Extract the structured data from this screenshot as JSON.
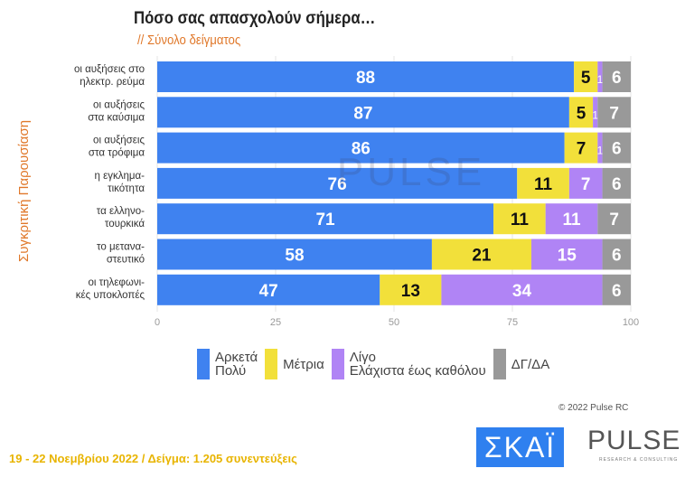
{
  "header": {
    "title": "Πόσο σας απασχολούν σήμερα…",
    "subtitle": "// Σύνολο δείγματος",
    "side_label": "Συγκριτική Παρουσίαση"
  },
  "chart_data": {
    "type": "bar",
    "orientation": "horizontal",
    "stacked": true,
    "categories": [
      "οι αυξήσεις στο|ηλεκτρ. ρεύμα",
      "οι αυξήσεις|στα καύσιμα",
      "οι αυξήσεις|στα τρόφιμα",
      "η εγκλημα-|τικότητα",
      "τα ελληνο-|τουρκικά",
      "το μεταναστευτικό",
      "οι τηλεφωνι-|κές υποκλοπές"
    ],
    "series": [
      {
        "name": "Αρκετά Πολύ",
        "color": "#3f82f0",
        "label_color": "#ffffff",
        "values": [
          88,
          87,
          86,
          76,
          71,
          58,
          47
        ]
      },
      {
        "name": "Μέτρια",
        "color": "#f2e03a",
        "label_color": "#111111",
        "values": [
          5,
          5,
          7,
          11,
          11,
          21,
          13
        ]
      },
      {
        "name": "Λίγο Ελάχιστα έως καθόλου",
        "color": "#b084f5",
        "label_color": "#ffffff",
        "values": [
          1,
          1,
          1,
          7,
          11,
          15,
          34
        ]
      },
      {
        "name": "ΔΓ/ΔΑ",
        "color": "#999999",
        "label_color": "#ffffff",
        "values": [
          6,
          7,
          6,
          6,
          7,
          6,
          6
        ]
      }
    ],
    "xlim": [
      0,
      100
    ],
    "xticks": [
      "0",
      "25",
      "50",
      "75",
      "100"
    ],
    "grid": true,
    "legend": "bottom"
  },
  "legend": [
    {
      "line1": "Αρκετά",
      "line2": "Πολύ"
    },
    {
      "line1": "Μέτρια",
      "line2": ""
    },
    {
      "line1": "Λίγο",
      "line2": "Ελάχιστα έως καθόλου"
    },
    {
      "line1": "ΔΓ/ΔΑ",
      "line2": ""
    }
  ],
  "watermark": "PULSE",
  "copyright": "© 2022 Pulse RC",
  "footer": "19 - 22 Νοεμβρίου  2022  /  Δείγμα:  1.205 συνεντεύξεις",
  "logos": {
    "skai": "ΣΚΑΪ",
    "pulse": "PULSE",
    "pulse_sub": "RESEARCH & CONSULTING"
  }
}
